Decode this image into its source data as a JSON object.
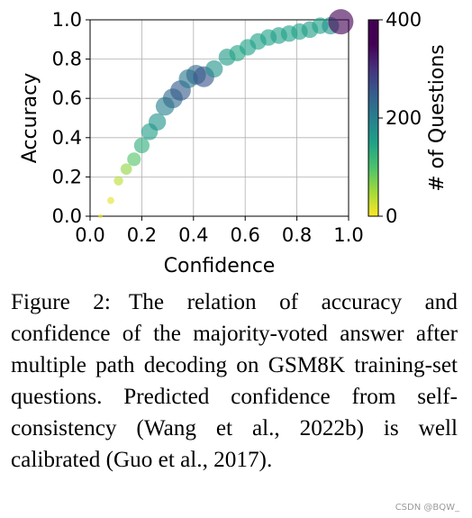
{
  "chart_data": {
    "type": "scatter",
    "title": "",
    "xlabel": "Confidence",
    "ylabel": "Accuracy",
    "xlim": [
      0.0,
      1.0
    ],
    "ylim": [
      0.0,
      1.0
    ],
    "x_ticks": [
      "0.0",
      "0.2",
      "0.4",
      "0.6",
      "0.8",
      "1.0"
    ],
    "y_ticks": [
      "0.0",
      "0.2",
      "0.4",
      "0.6",
      "0.8",
      "1.0"
    ],
    "grid": true,
    "colormap": "viridis",
    "colorbar": {
      "label": "# of Questions",
      "min": 0,
      "max": 400,
      "ticks": [
        "0",
        "200",
        "400"
      ]
    },
    "size_encodes": "# of Questions",
    "color_encodes": "# of Questions",
    "points": [
      {
        "x": 0.04,
        "y": 0.0,
        "n": 2
      },
      {
        "x": 0.08,
        "y": 0.08,
        "n": 15
      },
      {
        "x": 0.11,
        "y": 0.18,
        "n": 35
      },
      {
        "x": 0.14,
        "y": 0.24,
        "n": 60
      },
      {
        "x": 0.17,
        "y": 0.29,
        "n": 95
      },
      {
        "x": 0.2,
        "y": 0.36,
        "n": 130
      },
      {
        "x": 0.23,
        "y": 0.43,
        "n": 155
      },
      {
        "x": 0.26,
        "y": 0.48,
        "n": 170
      },
      {
        "x": 0.29,
        "y": 0.56,
        "n": 200
      },
      {
        "x": 0.32,
        "y": 0.6,
        "n": 230
      },
      {
        "x": 0.35,
        "y": 0.64,
        "n": 250
      },
      {
        "x": 0.38,
        "y": 0.7,
        "n": 210
      },
      {
        "x": 0.41,
        "y": 0.72,
        "n": 230
      },
      {
        "x": 0.44,
        "y": 0.71,
        "n": 260
      },
      {
        "x": 0.48,
        "y": 0.75,
        "n": 170
      },
      {
        "x": 0.53,
        "y": 0.81,
        "n": 160
      },
      {
        "x": 0.57,
        "y": 0.83,
        "n": 145
      },
      {
        "x": 0.61,
        "y": 0.86,
        "n": 150
      },
      {
        "x": 0.65,
        "y": 0.89,
        "n": 150
      },
      {
        "x": 0.69,
        "y": 0.91,
        "n": 150
      },
      {
        "x": 0.73,
        "y": 0.92,
        "n": 155
      },
      {
        "x": 0.77,
        "y": 0.93,
        "n": 150
      },
      {
        "x": 0.81,
        "y": 0.94,
        "n": 150
      },
      {
        "x": 0.85,
        "y": 0.95,
        "n": 155
      },
      {
        "x": 0.89,
        "y": 0.97,
        "n": 150
      },
      {
        "x": 0.93,
        "y": 0.97,
        "n": 170
      },
      {
        "x": 0.97,
        "y": 0.99,
        "n": 400
      }
    ]
  },
  "caption": {
    "label": "Figure 2:",
    "text": "The relation of accu­racy and confidence of the majority-voted answer after multiple path de­coding on GSM8K training-set ques­tions. Predicted confidence from self-consistency (Wang et al., 2022b) is well calibrated (Guo et al., 2017)."
  },
  "watermark": "CSDN @BQW_"
}
